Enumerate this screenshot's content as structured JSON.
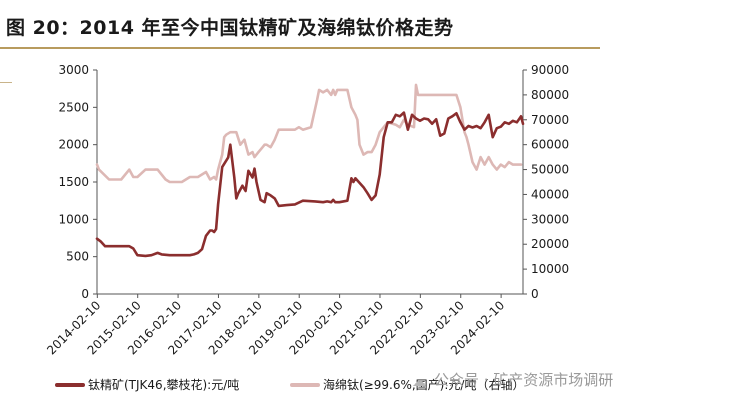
{
  "title": "图 20：2014 年至今中国钛精矿及海绵钛价格走势",
  "watermark": "公众号 · 矿产资源市场调研",
  "chart_data": {
    "type": "line",
    "x_tick_labels": [
      "2014-02-10",
      "2015-02-10",
      "2016-02-10",
      "2017-02-10",
      "2018-02-10",
      "2019-02-10",
      "2020-02-10",
      "2021-02-10",
      "2022-02-10",
      "2023-02-10",
      "2024-02-10"
    ],
    "x_range": [
      2014.1,
      2024.65
    ],
    "left_axis": {
      "ylim": [
        0,
        3000
      ],
      "ticks": [
        "0",
        "500",
        "1000",
        "1500",
        "2000",
        "2500",
        "3000"
      ]
    },
    "right_axis": {
      "ylim": [
        0,
        90000
      ],
      "ticks": [
        "0",
        "10000",
        "20000",
        "30000",
        "40000",
        "50000",
        "60000",
        "70000",
        "80000",
        "90000"
      ]
    },
    "series": [
      {
        "name": "钛精矿(TJK46,攀枝花):元/吨",
        "axis": "left",
        "color": "#8b2e2e",
        "x": [
          2014.1,
          2014.2,
          2014.3,
          2014.6,
          2014.9,
          2015.0,
          2015.1,
          2015.3,
          2015.45,
          2015.6,
          2015.7,
          2015.9,
          2016.2,
          2016.4,
          2016.5,
          2016.6,
          2016.7,
          2016.8,
          2016.9,
          2016.95,
          2017.0,
          2017.05,
          2017.1,
          2017.2,
          2017.35,
          2017.4,
          2017.5,
          2017.55,
          2017.6,
          2017.7,
          2017.78,
          2017.85,
          2017.95,
          2018.0,
          2018.05,
          2018.15,
          2018.25,
          2018.3,
          2018.4,
          2018.5,
          2018.6,
          2018.8,
          2019.0,
          2019.2,
          2019.5,
          2019.7,
          2019.8,
          2019.9,
          2019.95,
          2020.0,
          2020.1,
          2020.3,
          2020.4,
          2020.45,
          2020.5,
          2020.7,
          2020.8,
          2020.9,
          2021.0,
          2021.1,
          2021.2,
          2021.3,
          2021.4,
          2021.5,
          2021.6,
          2021.7,
          2021.8,
          2021.9,
          2022.0,
          2022.1,
          2022.2,
          2022.3,
          2022.4,
          2022.5,
          2022.6,
          2022.7,
          2022.8,
          2022.9,
          2023.0,
          2023.1,
          2023.2,
          2023.3,
          2023.4,
          2023.5,
          2023.6,
          2023.7,
          2023.8,
          2023.9,
          2024.0,
          2024.1,
          2024.2,
          2024.3,
          2024.4,
          2024.5,
          2024.6,
          2024.65
        ],
        "y": [
          740,
          700,
          640,
          640,
          640,
          610,
          520,
          510,
          520,
          550,
          530,
          520,
          520,
          520,
          530,
          550,
          600,
          780,
          850,
          850,
          830,
          870,
          1200,
          1700,
          1830,
          2000,
          1560,
          1280,
          1350,
          1450,
          1380,
          1650,
          1560,
          1680,
          1500,
          1260,
          1230,
          1350,
          1320,
          1280,
          1180,
          1190,
          1200,
          1250,
          1240,
          1230,
          1240,
          1230,
          1260,
          1230,
          1230,
          1250,
          1550,
          1500,
          1550,
          1430,
          1350,
          1260,
          1320,
          1600,
          2100,
          2300,
          2300,
          2400,
          2380,
          2430,
          2200,
          2400,
          2350,
          2320,
          2350,
          2340,
          2280,
          2340,
          2120,
          2150,
          2350,
          2380,
          2420,
          2300,
          2200,
          2250,
          2230,
          2250,
          2220,
          2300,
          2400,
          2100,
          2220,
          2240,
          2300,
          2280,
          2320,
          2300,
          2380,
          2280
        ]
      },
      {
        "name": "海绵钛(≥99.6%,国产):元/吨（右轴）",
        "axis": "right",
        "color": "#ddb8b5",
        "x": [
          2014.1,
          2014.15,
          2014.4,
          2014.7,
          2014.9,
          2015.0,
          2015.1,
          2015.3,
          2015.4,
          2015.6,
          2015.8,
          2015.9,
          2016.0,
          2016.2,
          2016.4,
          2016.5,
          2016.6,
          2016.8,
          2016.9,
          2017.0,
          2017.05,
          2017.1,
          2017.2,
          2017.25,
          2017.3,
          2017.4,
          2017.55,
          2017.65,
          2017.75,
          2017.85,
          2017.95,
          2018.0,
          2018.1,
          2018.2,
          2018.25,
          2018.3,
          2018.4,
          2018.5,
          2018.6,
          2018.7,
          2018.8,
          2018.9,
          2019.0,
          2019.1,
          2019.2,
          2019.4,
          2019.55,
          2019.6,
          2019.7,
          2019.8,
          2019.9,
          2019.95,
          2020.0,
          2020.05,
          2020.1,
          2020.2,
          2020.3,
          2020.4,
          2020.5,
          2020.55,
          2020.6,
          2020.7,
          2020.8,
          2020.9,
          2021.0,
          2021.1,
          2021.2,
          2021.3,
          2021.5,
          2021.6,
          2021.7,
          2021.8,
          2021.95,
          2022.0,
          2022.05,
          2022.1,
          2022.2,
          2022.4,
          2022.6,
          2022.8,
          2022.9,
          2023.0,
          2023.1,
          2023.2,
          2023.25,
          2023.3,
          2023.4,
          2023.5,
          2023.6,
          2023.7,
          2023.8,
          2023.9,
          2024.0,
          2024.1,
          2024.2,
          2024.3,
          2024.4,
          2024.5,
          2024.6
        ],
        "y": [
          52000,
          50000,
          46000,
          46000,
          50000,
          47000,
          47000,
          50000,
          50000,
          50000,
          46000,
          45000,
          45000,
          45000,
          47000,
          47000,
          47000,
          49000,
          46000,
          47000,
          46000,
          50000,
          56000,
          63000,
          64000,
          65000,
          65000,
          60000,
          62000,
          56000,
          57000,
          55000,
          57000,
          59000,
          60000,
          60000,
          59000,
          62000,
          66000,
          66000,
          66000,
          66000,
          66000,
          67000,
          66000,
          67000,
          78000,
          82000,
          81000,
          82000,
          80000,
          82000,
          80000,
          82000,
          82000,
          82000,
          82000,
          75000,
          72000,
          70000,
          60000,
          56000,
          57000,
          57000,
          60000,
          65000,
          67000,
          69000,
          68000,
          67000,
          70000,
          68000,
          67000,
          84000,
          80000,
          80000,
          80000,
          80000,
          80000,
          80000,
          80000,
          80000,
          75000,
          65000,
          63000,
          60000,
          53000,
          50000,
          55000,
          52000,
          55000,
          52000,
          50000,
          52000,
          51000,
          53000,
          52000,
          52000,
          52000
        ]
      }
    ],
    "legend_position": "bottom",
    "grid": false
  }
}
